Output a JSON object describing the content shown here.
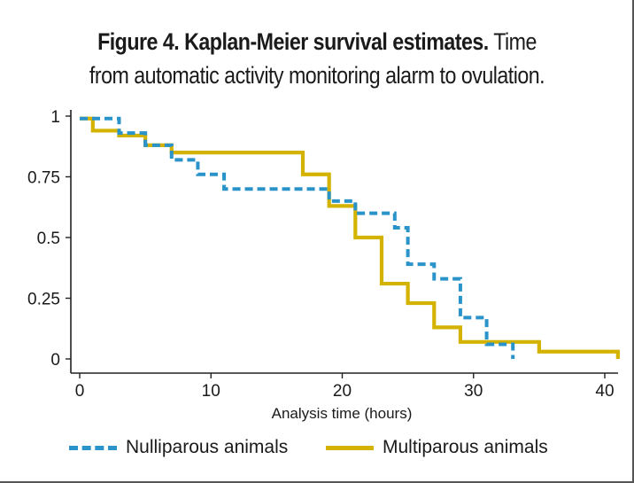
{
  "title": {
    "bold": "Figure 4. Kaplan-Meier survival estimates.",
    "rest_line1": "Time",
    "line2": "from automatic activity monitoring alarm to ovulation."
  },
  "chart_data": {
    "type": "line",
    "step": true,
    "title": "Figure 4. Kaplan-Meier survival estimates. Time from automatic activity monitoring alarm to ovulation.",
    "xlabel": "Analysis time (hours)",
    "ylabel": "",
    "xlim": [
      -0.5,
      41
    ],
    "ylim": [
      0,
      1
    ],
    "xticks": [
      0,
      10,
      20,
      30,
      40
    ],
    "xtick_labels": [
      "0",
      "10",
      "20",
      "30",
      "40"
    ],
    "yticks": [
      0,
      0.25,
      0.5,
      0.75,
      1
    ],
    "ytick_labels": [
      "0",
      "0.25",
      "0.5",
      "0.75",
      "1"
    ],
    "grid": false,
    "legend_position": "bottom",
    "series": [
      {
        "name": "Nulliparous animals",
        "color": "#2a93c9",
        "style": "dashed",
        "x": [
          0,
          3,
          5,
          7,
          9,
          11,
          19,
          21,
          24,
          25,
          27,
          29,
          31,
          33
        ],
        "y": [
          0.99,
          0.93,
          0.88,
          0.82,
          0.76,
          0.7,
          0.65,
          0.6,
          0.54,
          0.39,
          0.33,
          0.17,
          0.06,
          0
        ]
      },
      {
        "name": "Multiparous animals",
        "color": "#d4b300",
        "style": "solid",
        "x": [
          0,
          1,
          3,
          5,
          7,
          17,
          19,
          21,
          23,
          25,
          27,
          29,
          35,
          41
        ],
        "y": [
          0.99,
          0.94,
          0.92,
          0.88,
          0.85,
          0.76,
          0.63,
          0.5,
          0.31,
          0.23,
          0.13,
          0.07,
          0.03,
          0
        ]
      }
    ]
  }
}
